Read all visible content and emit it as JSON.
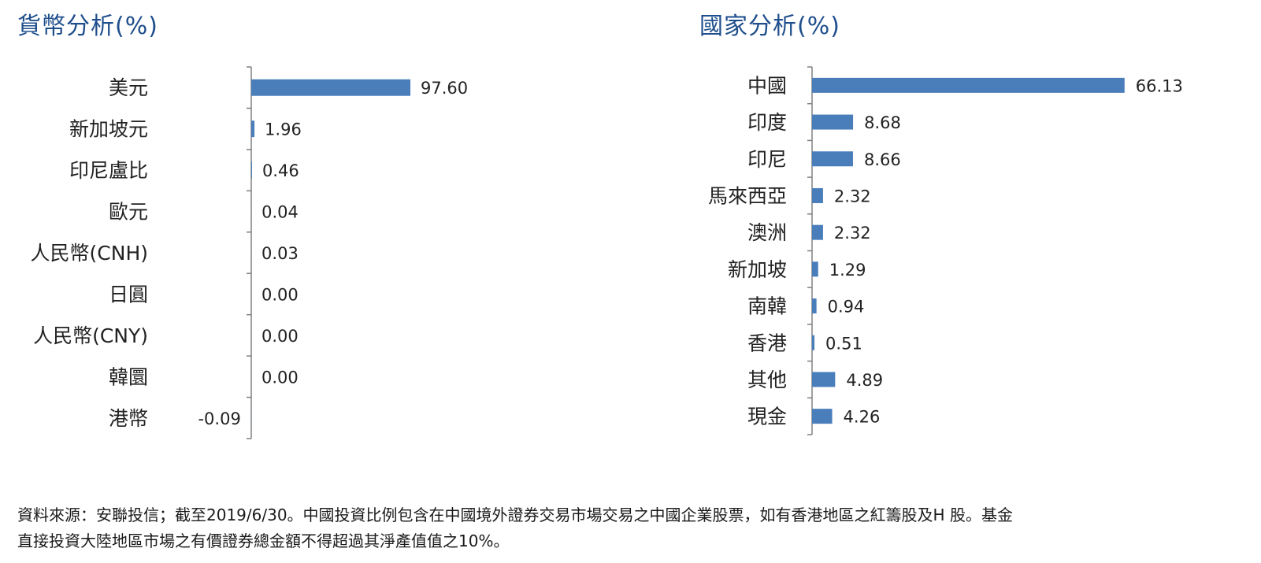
{
  "colors": {
    "bar": "#4a7ebb",
    "axis": "#808080",
    "title": "#1f4e8c"
  },
  "chart_data": [
    {
      "type": "bar",
      "orientation": "horizontal",
      "title": "貨幣分析(%)",
      "categories": [
        "美元",
        "新加坡元",
        "印尼盧比",
        "歐元",
        "人民幣(CNH)",
        "日圓",
        "人民幣(CNY)",
        "韓圜",
        "港幣"
      ],
      "values": [
        97.6,
        1.96,
        0.46,
        0.04,
        0.03,
        0.0,
        0.0,
        0.0,
        -0.09
      ],
      "value_labels": [
        "97.60",
        "1.96",
        "0.46",
        "0.04",
        "0.03",
        "0.00",
        "0.00",
        "0.00",
        "-0.09"
      ],
      "xlabel": "",
      "ylabel": "",
      "grid": false,
      "legend": "none"
    },
    {
      "type": "bar",
      "orientation": "horizontal",
      "title": "國家分析(%)",
      "categories": [
        "中國",
        "印度",
        "印尼",
        "馬來西亞",
        "澳洲",
        "新加坡",
        "南韓",
        "香港",
        "其他",
        "現金"
      ],
      "values": [
        66.13,
        8.68,
        8.66,
        2.32,
        2.32,
        1.29,
        0.94,
        0.51,
        4.89,
        4.26
      ],
      "value_labels": [
        "66.13",
        "8.68",
        "8.66",
        "2.32",
        "2.32",
        "1.29",
        "0.94",
        "0.51",
        "4.89",
        "4.26"
      ],
      "xlabel": "",
      "ylabel": "",
      "grid": false,
      "legend": "none"
    }
  ],
  "footnote": {
    "line1": "資料來源：安聯投信；截至2019/6/30。中國投資比例包含在中國境外證券交易市場交易之中國企業股票，如有香港地區之紅籌股及H 股。基金",
    "line2": "直接投資大陸地區市場之有價證券總金額不得超過其淨產值值之10%。"
  }
}
